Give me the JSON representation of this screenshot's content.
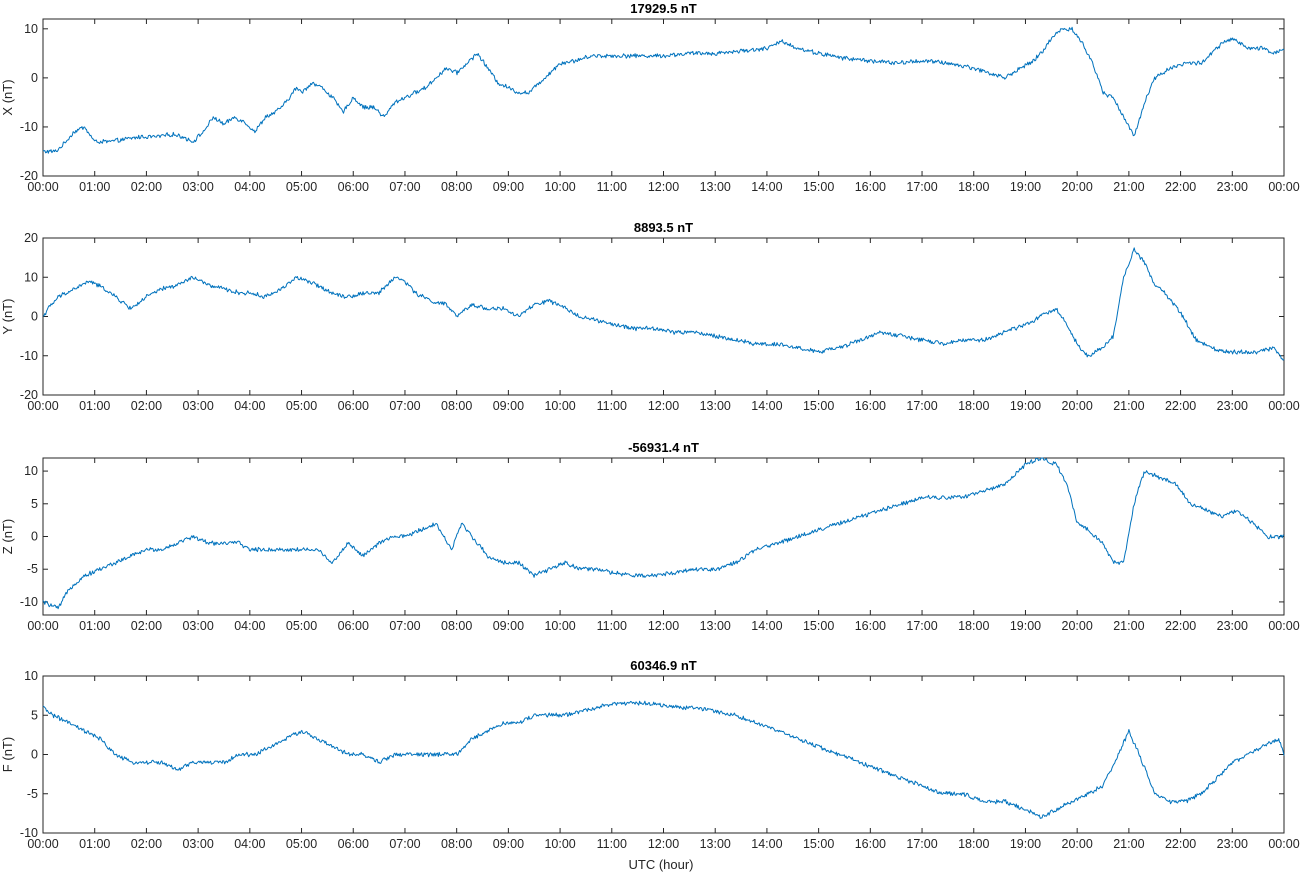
{
  "figure": {
    "xlabel": "UTC (hour)",
    "line_color": "#0072BD"
  },
  "chart_data": [
    {
      "type": "line",
      "title": "17929.5 nT",
      "ylabel": "X (nT)",
      "xlim": [
        0,
        24
      ],
      "ylim": [
        -20,
        12
      ],
      "yticks": [
        -20,
        -10,
        0,
        10
      ],
      "xticks": [
        "00:00",
        "01:00",
        "02:00",
        "03:00",
        "04:00",
        "05:00",
        "06:00",
        "07:00",
        "08:00",
        "09:00",
        "10:00",
        "11:00",
        "12:00",
        "13:00",
        "14:00",
        "15:00",
        "16:00",
        "17:00",
        "18:00",
        "19:00",
        "20:00",
        "21:00",
        "22:00",
        "23:00",
        "00:00"
      ],
      "series": [
        {
          "x": [
            0,
            0.25,
            0.4,
            0.6,
            0.8,
            1.0,
            1.3,
            1.6,
            1.9,
            2.2,
            2.5,
            2.7,
            2.9,
            3.1,
            3.3,
            3.5,
            3.7,
            3.9,
            4.1,
            4.3,
            4.5,
            4.7,
            4.9,
            5.0,
            5.2,
            5.4,
            5.6,
            5.8,
            6.0,
            6.2,
            6.4,
            6.6,
            6.8,
            7.0,
            7.2,
            7.4,
            7.6,
            7.8,
            8.0,
            8.2,
            8.4,
            8.6,
            8.8,
            9.0,
            9.2,
            9.4,
            9.6,
            9.8,
            10.0,
            10.3,
            10.6,
            11.0,
            11.5,
            12.0,
            12.5,
            13.0,
            13.5,
            14.0,
            14.3,
            14.6,
            15.0,
            15.5,
            16.0,
            16.5,
            17.0,
            17.5,
            18.0,
            18.3,
            18.6,
            18.9,
            19.1,
            19.3,
            19.5,
            19.7,
            19.9,
            20.1,
            20.3,
            20.5,
            20.7,
            20.9,
            21.1,
            21.3,
            21.5,
            21.8,
            22.1,
            22.4,
            22.6,
            22.8,
            23.0,
            23.3,
            23.6,
            23.8,
            24.0
          ],
          "y": [
            -15,
            -15,
            -13.5,
            -11,
            -10,
            -13,
            -13,
            -12.5,
            -12,
            -12,
            -11.5,
            -12,
            -13,
            -11,
            -8,
            -9.5,
            -8,
            -9,
            -11,
            -8,
            -7,
            -5,
            -2,
            -3,
            -1,
            -2,
            -4,
            -7,
            -4,
            -6,
            -6,
            -8,
            -5,
            -4,
            -3,
            -2,
            0,
            2,
            1,
            3,
            5,
            2,
            -1,
            -2,
            -3,
            -3,
            -1,
            1,
            3,
            3.5,
            4.5,
            4.5,
            4.5,
            4.5,
            5,
            5,
            5.5,
            6,
            7.5,
            6,
            5,
            4,
            3.5,
            3,
            3.5,
            3,
            2,
            1,
            0,
            2,
            3,
            5,
            8,
            10,
            10,
            7,
            3,
            -3,
            -4,
            -8,
            -12,
            -5,
            0,
            2,
            3,
            3,
            5,
            7,
            8,
            6,
            6,
            5,
            6
          ]
        }
      ]
    },
    {
      "type": "line",
      "title": "8893.5 nT",
      "ylabel": "Y (nT)",
      "xlim": [
        0,
        24
      ],
      "ylim": [
        -20,
        20
      ],
      "yticks": [
        -20,
        -10,
        0,
        10,
        20
      ],
      "xticks": [
        "00:00",
        "01:00",
        "02:00",
        "03:00",
        "04:00",
        "05:00",
        "06:00",
        "07:00",
        "08:00",
        "09:00",
        "10:00",
        "11:00",
        "12:00",
        "13:00",
        "14:00",
        "15:00",
        "16:00",
        "17:00",
        "18:00",
        "19:00",
        "20:00",
        "21:00",
        "22:00",
        "23:00",
        "00:00"
      ],
      "series": [
        {
          "x": [
            0,
            0.1,
            0.3,
            0.6,
            0.9,
            1.2,
            1.5,
            1.7,
            2.0,
            2.3,
            2.6,
            2.9,
            3.2,
            3.5,
            3.8,
            4.0,
            4.3,
            4.6,
            4.9,
            5.1,
            5.3,
            5.6,
            5.9,
            6.2,
            6.5,
            6.8,
            7.0,
            7.2,
            7.5,
            7.8,
            8.0,
            8.3,
            8.6,
            8.9,
            9.2,
            9.5,
            9.8,
            10.1,
            10.4,
            10.7,
            11.0,
            11.4,
            11.8,
            12.2,
            12.6,
            13.0,
            13.4,
            13.8,
            14.2,
            14.6,
            15.0,
            15.4,
            15.8,
            16.2,
            16.6,
            17.0,
            17.4,
            17.8,
            18.2,
            18.6,
            19.0,
            19.3,
            19.6,
            19.8,
            20.0,
            20.2,
            20.5,
            20.7,
            20.9,
            21.1,
            21.3,
            21.5,
            21.7,
            22.0,
            22.3,
            22.6,
            22.9,
            23.2,
            23.5,
            23.8,
            24.0
          ],
          "y": [
            0,
            2,
            5,
            7,
            9,
            7,
            4,
            2,
            5,
            7,
            8,
            10,
            8,
            7,
            6,
            6,
            5,
            7,
            10,
            9,
            8,
            6,
            5,
            6,
            6,
            10,
            9,
            6,
            4,
            3,
            0,
            3,
            2,
            2,
            0,
            3,
            4,
            2,
            0,
            -1,
            -2,
            -3,
            -3,
            -4,
            -4,
            -5,
            -6,
            -7,
            -7,
            -8,
            -9,
            -8,
            -6,
            -4,
            -5,
            -6,
            -7,
            -6,
            -6,
            -4,
            -2,
            0,
            2,
            -2,
            -7,
            -10,
            -8,
            -5,
            10,
            17,
            14,
            8,
            6,
            1,
            -6,
            -8,
            -9,
            -9,
            -9,
            -8,
            -11
          ]
        }
      ]
    },
    {
      "type": "line",
      "title": "-56931.4 nT",
      "ylabel": "Z (nT)",
      "xlim": [
        0,
        24
      ],
      "ylim": [
        -12,
        12
      ],
      "yticks": [
        -10,
        -5,
        0,
        5,
        10
      ],
      "xticks": [
        "00:00",
        "01:00",
        "02:00",
        "03:00",
        "04:00",
        "05:00",
        "06:00",
        "07:00",
        "08:00",
        "09:00",
        "10:00",
        "11:00",
        "12:00",
        "13:00",
        "14:00",
        "15:00",
        "16:00",
        "17:00",
        "18:00",
        "19:00",
        "20:00",
        "21:00",
        "22:00",
        "23:00",
        "00:00"
      ],
      "series": [
        {
          "x": [
            0,
            0.3,
            0.5,
            0.8,
            1.1,
            1.4,
            1.7,
            2.0,
            2.3,
            2.6,
            2.9,
            3.2,
            3.5,
            3.8,
            4.0,
            4.3,
            4.6,
            4.9,
            5.1,
            5.3,
            5.6,
            5.9,
            6.2,
            6.5,
            6.8,
            7.0,
            7.3,
            7.6,
            7.9,
            8.1,
            8.3,
            8.6,
            8.9,
            9.2,
            9.5,
            9.8,
            10.1,
            10.4,
            10.7,
            11.0,
            11.4,
            11.8,
            12.2,
            12.6,
            13.0,
            13.4,
            13.8,
            14.2,
            14.6,
            15.0,
            15.4,
            15.8,
            16.2,
            16.6,
            17.0,
            17.4,
            17.8,
            18.2,
            18.6,
            19.0,
            19.3,
            19.6,
            19.8,
            20.0,
            20.2,
            20.5,
            20.7,
            20.9,
            21.1,
            21.3,
            21.6,
            21.9,
            22.2,
            22.5,
            22.8,
            23.1,
            23.4,
            23.7,
            24.0
          ],
          "y": [
            -10,
            -11,
            -8,
            -6,
            -5,
            -4,
            -3,
            -2,
            -2,
            -1,
            0,
            -1,
            -1,
            -1,
            -2,
            -2,
            -2,
            -2,
            -2,
            -2,
            -4,
            -1,
            -3,
            -1,
            0,
            0,
            1,
            2,
            -2,
            2,
            0,
            -3,
            -4,
            -4,
            -6,
            -5,
            -4,
            -5,
            -5,
            -5.5,
            -6,
            -6,
            -5.5,
            -5,
            -5,
            -4,
            -2,
            -1,
            0,
            1,
            2,
            3,
            4,
            5,
            6,
            6,
            6,
            7,
            8,
            11,
            12,
            11,
            8,
            2,
            1,
            -1,
            -4,
            -4,
            5,
            10,
            9,
            8,
            5,
            4,
            3,
            4,
            2,
            0,
            0
          ]
        }
      ]
    },
    {
      "type": "line",
      "title": "60346.9 nT",
      "ylabel": "F (nT)",
      "xlim": [
        0,
        24
      ],
      "ylim": [
        -10,
        10
      ],
      "yticks": [
        -10,
        -5,
        0,
        5,
        10
      ],
      "xticks": [
        "00:00",
        "01:00",
        "02:00",
        "03:00",
        "04:00",
        "05:00",
        "06:00",
        "07:00",
        "08:00",
        "09:00",
        "10:00",
        "11:00",
        "12:00",
        "13:00",
        "14:00",
        "15:00",
        "16:00",
        "17:00",
        "18:00",
        "19:00",
        "20:00",
        "21:00",
        "22:00",
        "23:00",
        "00:00"
      ],
      "series": [
        {
          "x": [
            0,
            0.2,
            0.5,
            0.8,
            1.1,
            1.4,
            1.7,
            2.0,
            2.3,
            2.6,
            2.9,
            3.2,
            3.5,
            3.8,
            4.1,
            4.4,
            4.7,
            5.0,
            5.3,
            5.6,
            5.9,
            6.2,
            6.5,
            6.8,
            7.1,
            7.4,
            7.7,
            8.0,
            8.3,
            8.6,
            8.9,
            9.2,
            9.5,
            9.8,
            10.1,
            10.4,
            10.7,
            11.0,
            11.4,
            11.8,
            12.2,
            12.6,
            13.0,
            13.4,
            13.8,
            14.2,
            14.6,
            15.0,
            15.4,
            15.8,
            16.2,
            16.6,
            17.0,
            17.4,
            17.8,
            18.2,
            18.6,
            19.0,
            19.3,
            19.6,
            19.9,
            20.2,
            20.5,
            20.8,
            21.0,
            21.2,
            21.5,
            21.8,
            22.1,
            22.4,
            22.7,
            23.0,
            23.3,
            23.6,
            23.9,
            24.0
          ],
          "y": [
            6,
            5,
            4,
            3,
            2,
            0,
            -1,
            -1,
            -1,
            -2,
            -1,
            -1,
            -1,
            0,
            0,
            1,
            2,
            3,
            2,
            1,
            0,
            0,
            -1,
            0,
            0,
            0,
            0,
            0,
            2,
            3,
            4,
            4,
            5,
            5,
            5,
            5.5,
            6,
            6.5,
            6.5,
            6.5,
            6,
            6,
            5.5,
            5,
            4,
            3,
            2,
            1,
            0,
            -1,
            -2,
            -3,
            -4,
            -5,
            -5,
            -6,
            -6,
            -7,
            -8,
            -7,
            -6,
            -5,
            -4,
            0,
            3,
            0,
            -5,
            -6,
            -6,
            -5,
            -3,
            -1,
            0,
            1,
            2,
            0
          ]
        }
      ]
    }
  ]
}
